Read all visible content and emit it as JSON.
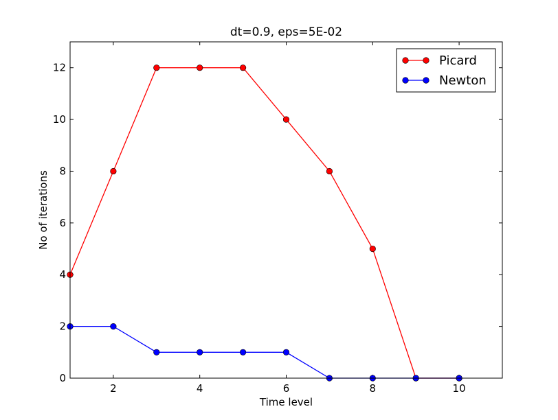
{
  "chart_data": {
    "type": "line",
    "title": "dt=0.9, eps=5E-02",
    "xlabel": "Time level",
    "ylabel": "No of iterations",
    "xlim": [
      1,
      11
    ],
    "ylim": [
      0,
      13
    ],
    "xticks": [
      2,
      4,
      6,
      8,
      10
    ],
    "yticks": [
      0,
      2,
      4,
      6,
      8,
      10,
      12
    ],
    "grid": false,
    "legend_position": "top-right",
    "series": [
      {
        "name": "Picard",
        "color": "#ff0000",
        "marker": "circle",
        "x": [
          1,
          2,
          3,
          4,
          5,
          6,
          7,
          8,
          9,
          10
        ],
        "y": [
          4,
          8,
          12,
          12,
          12,
          10,
          8,
          5,
          0,
          0
        ]
      },
      {
        "name": "Newton",
        "color": "#0000ff",
        "marker": "circle",
        "x": [
          1,
          2,
          3,
          4,
          5,
          6,
          7,
          8,
          9,
          10
        ],
        "y": [
          2,
          2,
          1,
          1,
          1,
          1,
          0,
          0,
          0,
          0
        ]
      }
    ]
  }
}
